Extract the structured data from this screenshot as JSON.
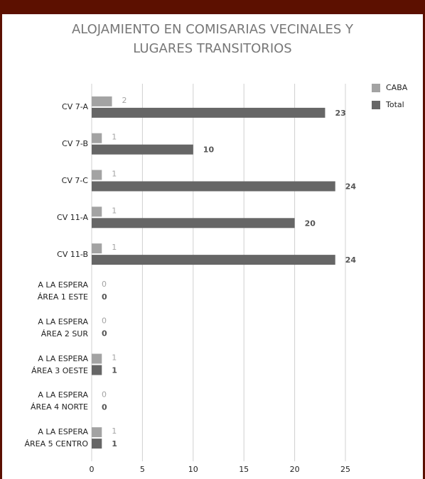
{
  "chart_data": {
    "type": "bar",
    "orientation": "horizontal",
    "title": "ALOJAMIENTO EN COMISARIAS VECINALES Y\nLUGARES TRANSITORIOS",
    "categories": [
      "CV 7-A",
      "CV 7-B",
      "CV 7-C",
      "CV 11-A",
      "CV 11-B",
      "A LA ESPERA\nÁREA 1 ESTE",
      "A LA ESPERA\nÁREA 2 SUR",
      "A LA ESPERA\nÁREA 3 OESTE",
      "A LA ESPERA\nÁREA 4 NORTE",
      "A LA ESPERA\nÁREA 5 CENTRO"
    ],
    "series": [
      {
        "name": "CABA",
        "color": "#a3a3a3",
        "values": [
          2,
          1,
          1,
          1,
          1,
          0,
          0,
          1,
          0,
          1
        ]
      },
      {
        "name": "Total",
        "color": "#666666",
        "values": [
          23,
          10,
          24,
          20,
          24,
          0,
          0,
          1,
          0,
          1
        ]
      }
    ],
    "xlim": [
      0,
      25
    ],
    "xticks": [
      0,
      5,
      10,
      15,
      20,
      25
    ],
    "grid": true,
    "legend": "top-right"
  }
}
